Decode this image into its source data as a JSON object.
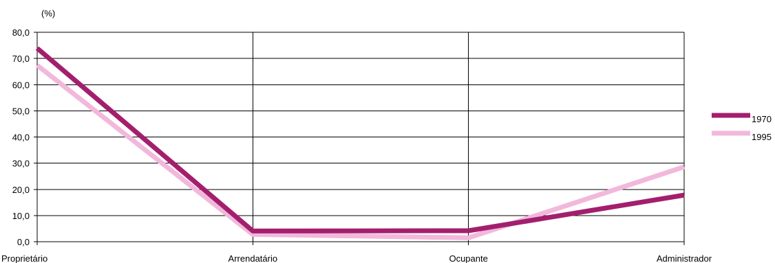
{
  "chart_data": {
    "type": "line",
    "title": "",
    "ylabel": "(%)",
    "xlabel": "",
    "categories": [
      "Proprietário",
      "Arrendatário",
      "Ocupante",
      "Administrador"
    ],
    "ylim": [
      0,
      80
    ],
    "yticks": [
      "0,0",
      "10,0",
      "20,0",
      "30,0",
      "40,0",
      "50,0",
      "60,0",
      "70,0",
      "80,0"
    ],
    "grid": true,
    "legend_position": "right",
    "series": [
      {
        "name": "1970",
        "values": [
          73.9,
          4.1,
          4.2,
          17.8
        ],
        "color": "#a31f6e"
      },
      {
        "name": "1995",
        "values": [
          67.4,
          2.8,
          1.5,
          28.6
        ],
        "color": "#f2b8db"
      }
    ]
  }
}
